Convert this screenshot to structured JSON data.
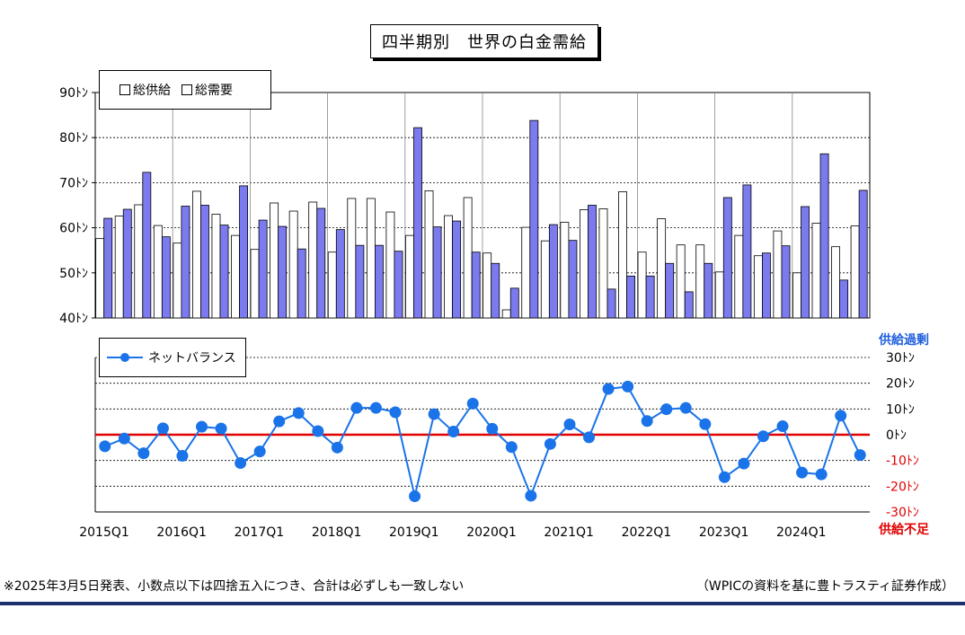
{
  "title": "四半期別　世界の白金需給",
  "legend_top": {
    "supply_label": "総供給",
    "demand_label": "総需要"
  },
  "legend_bottom": {
    "net_label": "ネットバランス"
  },
  "surplus_label": "供給過剰",
  "shortage_label": "供給不足",
  "note_left": "※2025年3月5日発表、小数点以下は四捨五入につき、合計は必ずしも一致しない",
  "note_right": "（WPICの資料を基に豊トラスティ証券作成）",
  "colors": {
    "supply": "#ffffff",
    "demand": "#7b7bef",
    "net_line": "#1a73e8",
    "zero_line": "#e00000",
    "surplus": "#1f5fdc",
    "shortage": "#e00000",
    "rule": "#1d2f6f"
  },
  "chart_data": [
    {
      "type": "bar",
      "categories": [
        "2015Q1",
        "2015Q2",
        "2015Q3",
        "2015Q4",
        "2016Q1",
        "2016Q2",
        "2016Q3",
        "2016Q4",
        "2017Q1",
        "2017Q2",
        "2017Q3",
        "2017Q4",
        "2018Q1",
        "2018Q2",
        "2018Q3",
        "2018Q4",
        "2019Q1",
        "2019Q2",
        "2019Q3",
        "2019Q4",
        "2020Q1",
        "2020Q2",
        "2020Q3",
        "2020Q4",
        "2021Q1",
        "2021Q2",
        "2021Q3",
        "2021Q4",
        "2022Q1",
        "2022Q2",
        "2022Q3",
        "2022Q4",
        "2023Q1",
        "2023Q2",
        "2023Q3",
        "2023Q4",
        "2024Q1",
        "2024Q2",
        "2024Q3",
        "2024Q4"
      ],
      "x_tick_labels": [
        "2015Q1",
        "2016Q1",
        "2017Q1",
        "2018Q1",
        "2019Q1",
        "2020Q1",
        "2021Q1",
        "2022Q1",
        "2023Q1",
        "2024Q1"
      ],
      "series": [
        {
          "name": "総供給",
          "values": [
            57.6,
            62.6,
            65.1,
            60.5,
            56.6,
            68.1,
            63.0,
            58.3,
            55.2,
            65.5,
            63.7,
            65.7,
            54.6,
            66.5,
            66.5,
            63.5,
            58.3,
            68.2,
            62.7,
            66.7,
            54.4,
            41.8,
            60.1,
            57.1,
            61.2,
            64.0,
            64.2,
            68.0,
            54.6,
            62.0,
            56.2,
            56.2,
            50.2,
            58.3,
            53.8,
            59.3,
            50.0,
            61.0,
            55.8,
            60.4
          ]
        },
        {
          "name": "総需要",
          "values": [
            62.1,
            64.1,
            72.3,
            58.0,
            64.8,
            65.0,
            60.6,
            69.3,
            61.7,
            60.3,
            55.3,
            64.3,
            59.6,
            56.1,
            56.1,
            54.8,
            82.2,
            60.2,
            61.5,
            54.6,
            52.1,
            46.6,
            83.8,
            60.7,
            57.2,
            65.0,
            46.4,
            49.3,
            49.3,
            52.1,
            45.8,
            52.1,
            66.7,
            69.5,
            54.4,
            56.0,
            64.7,
            76.4,
            48.4,
            68.3
          ]
        }
      ],
      "ylim": [
        40,
        90
      ],
      "yticks": [
        40,
        50,
        60,
        70,
        80,
        90
      ],
      "ytick_labels": [
        "40ﾄﾝ",
        "50ﾄﾝ",
        "60ﾄﾝ",
        "70ﾄﾝ",
        "80ﾄﾝ",
        "90ﾄﾝ"
      ],
      "grid": true,
      "legend": "top-left"
    },
    {
      "type": "line",
      "categories": [
        "2015Q1",
        "2015Q2",
        "2015Q3",
        "2015Q4",
        "2016Q1",
        "2016Q2",
        "2016Q3",
        "2016Q4",
        "2017Q1",
        "2017Q2",
        "2017Q3",
        "2017Q4",
        "2018Q1",
        "2018Q2",
        "2018Q3",
        "2018Q4",
        "2019Q1",
        "2019Q2",
        "2019Q3",
        "2019Q4",
        "2020Q1",
        "2020Q2",
        "2020Q3",
        "2020Q4",
        "2021Q1",
        "2021Q2",
        "2021Q3",
        "2021Q4",
        "2022Q1",
        "2022Q2",
        "2022Q3",
        "2022Q4",
        "2023Q1",
        "2023Q2",
        "2023Q3",
        "2023Q4",
        "2024Q1",
        "2024Q2",
        "2024Q3",
        "2024Q4"
      ],
      "series": [
        {
          "name": "ネットバランス",
          "values": [
            -4.5,
            -1.5,
            -7.2,
            2.5,
            -8.2,
            3.1,
            2.4,
            -11.0,
            -6.5,
            5.2,
            8.4,
            1.4,
            -5.0,
            10.4,
            10.4,
            8.7,
            -23.9,
            8.0,
            1.2,
            12.1,
            2.3,
            -4.8,
            -23.7,
            -3.6,
            4.0,
            -1.0,
            17.8,
            18.7,
            5.3,
            9.9,
            10.4,
            4.1,
            -16.5,
            -11.2,
            -0.6,
            3.3,
            -14.7,
            -15.4,
            7.4,
            -7.9
          ]
        }
      ],
      "ylim": [
        -30,
        30
      ],
      "yticks": [
        -30,
        -20,
        -10,
        0,
        10,
        20,
        30
      ],
      "ytick_labels": [
        "-30ﾄﾝ",
        "-20ﾄﾝ",
        "-10ﾄﾝ",
        "0ﾄﾝ",
        "10ﾄﾝ",
        "20ﾄﾝ",
        "30ﾄﾝ"
      ],
      "grid": true,
      "legend": "top-left"
    }
  ]
}
